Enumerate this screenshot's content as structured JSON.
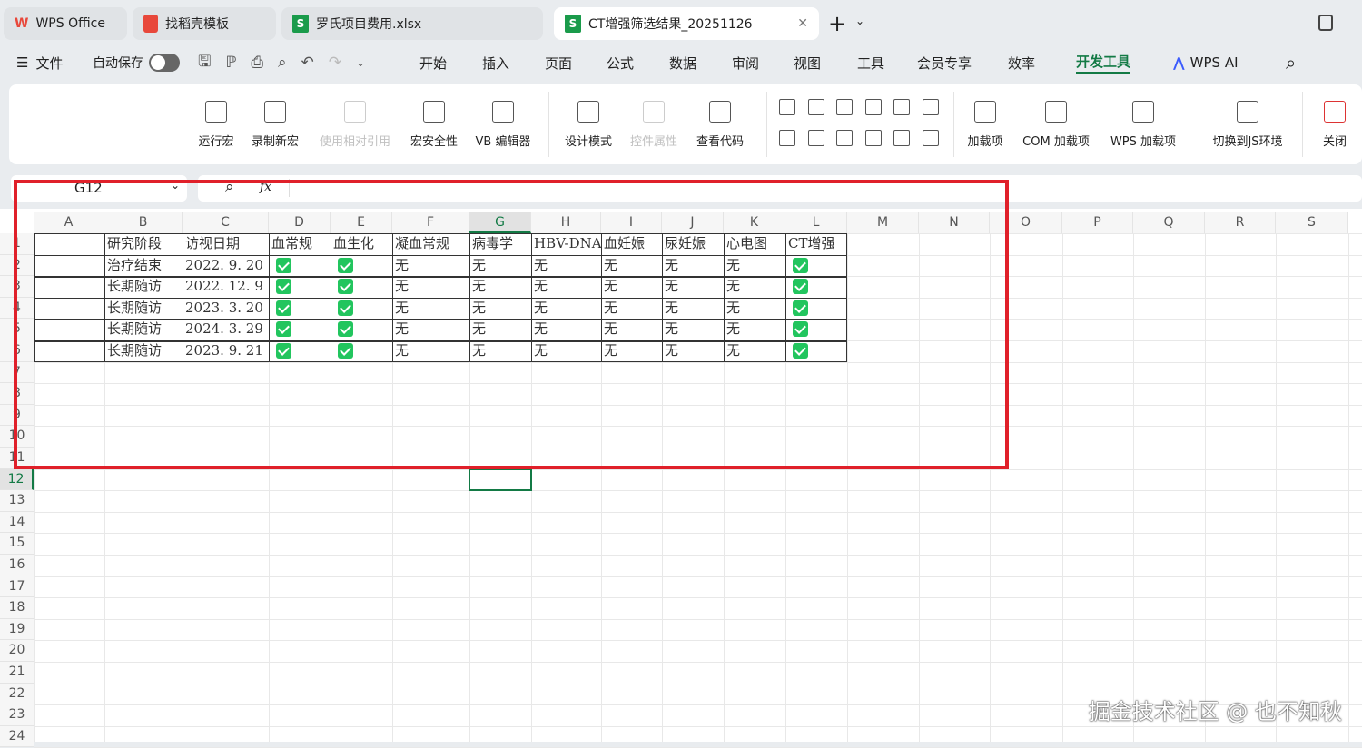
{
  "tabs": [
    {
      "label": "WPS Office",
      "icon": "wps-logo-icon"
    },
    {
      "label": "找稻壳模板",
      "icon": "docer-icon"
    },
    {
      "label": "罗氏项目费用.xlsx",
      "icon": "spreadsheet-icon"
    },
    {
      "label": "CT增强筛选结果_20251126",
      "icon": "spreadsheet-icon",
      "active": true
    }
  ],
  "menu": {
    "file": "文件",
    "autosave": "自动保存",
    "items": [
      "开始",
      "插入",
      "页面",
      "公式",
      "数据",
      "审阅",
      "视图",
      "工具",
      "会员专享",
      "效率",
      "开发工具"
    ],
    "active": "开发工具",
    "ai": "WPS AI"
  },
  "ribbon": {
    "buttons": [
      "运行宏",
      "录制新宏",
      "使用相对引用",
      "宏安全性",
      "VB 编辑器",
      "设计模式",
      "控件属性",
      "查看代码",
      "加载项",
      "COM 加载项",
      "WPS 加载项",
      "切换到JS环境",
      "关闭"
    ],
    "disabled": [
      "使用相对引用",
      "控件属性"
    ]
  },
  "formula_bar": {
    "name_box": "G12",
    "fx": "fx",
    "value": ""
  },
  "columns": [
    "A",
    "B",
    "C",
    "D",
    "E",
    "F",
    "G",
    "H",
    "I",
    "J",
    "K",
    "L",
    "M",
    "N",
    "O",
    "P",
    "Q",
    "R",
    "S"
  ],
  "selected_column": "G",
  "selected_row": 12,
  "table": {
    "headers": [
      "研究阶段",
      "访视日期",
      "血常规",
      "血生化",
      "凝血常规",
      "病毒学",
      "HBV-DNA",
      "血妊娠",
      "尿妊娠",
      "心电图",
      "CT增强"
    ],
    "rows": [
      [
        "治疗结束",
        "2022. 9. 20",
        "✓",
        "✓",
        "无",
        "无",
        "无",
        "无",
        "无",
        "无",
        "✓"
      ],
      [
        "长期随访",
        "2022. 12. 9",
        "✓",
        "✓",
        "无",
        "无",
        "无",
        "无",
        "无",
        "无",
        "✓"
      ],
      [
        "长期随访",
        "2023. 3. 20",
        "✓",
        "✓",
        "无",
        "无",
        "无",
        "无",
        "无",
        "无",
        "✓"
      ],
      [
        "长期随访",
        "2024. 3. 29",
        "✓",
        "✓",
        "无",
        "无",
        "无",
        "无",
        "无",
        "无",
        "✓"
      ],
      [
        "长期随访",
        "2023. 9. 21",
        "✓",
        "✓",
        "无",
        "无",
        "无",
        "无",
        "无",
        "无",
        "✓"
      ]
    ]
  },
  "watermark": "掘金技术社区 @ 也不知秋",
  "colors": {
    "accent": "#137a45",
    "highlight_box": "#e0202a",
    "check": "#22c55e"
  }
}
